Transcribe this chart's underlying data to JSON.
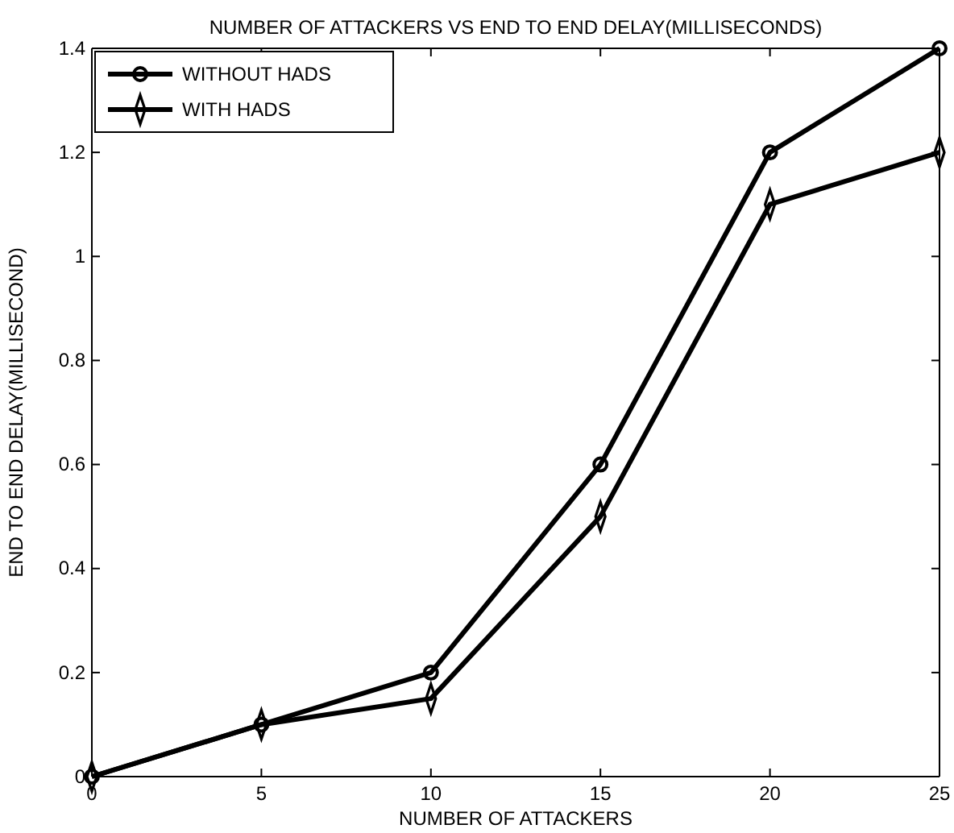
{
  "chart_data": {
    "type": "line",
    "title": "NUMBER OF ATTACKERS VS END TO END DELAY(MILLISECONDS)",
    "xlabel": "NUMBER OF ATTACKERS",
    "ylabel": "END TO END DELAY(MILLISECOND)",
    "x": [
      0,
      5,
      10,
      15,
      20,
      25
    ],
    "series": [
      {
        "name": "WITHOUT HADS",
        "color": "#000000",
        "marker": "circle",
        "values": [
          0,
          0.1,
          0.2,
          0.6,
          1.2,
          1.4
        ]
      },
      {
        "name": "WITH HADS",
        "color": "#000000",
        "marker": "diamond",
        "values": [
          0,
          0.1,
          0.15,
          0.5,
          1.1,
          1.2
        ]
      }
    ],
    "xlim": [
      0,
      25
    ],
    "xticks": [
      0,
      5,
      10,
      15,
      20,
      25
    ],
    "ylim": [
      0,
      1.4
    ],
    "yticks": [
      0,
      0.2,
      0.4,
      0.6,
      0.8,
      1,
      1.2,
      1.4
    ],
    "grid": false,
    "legend": "top left",
    "line_style": "solid"
  }
}
